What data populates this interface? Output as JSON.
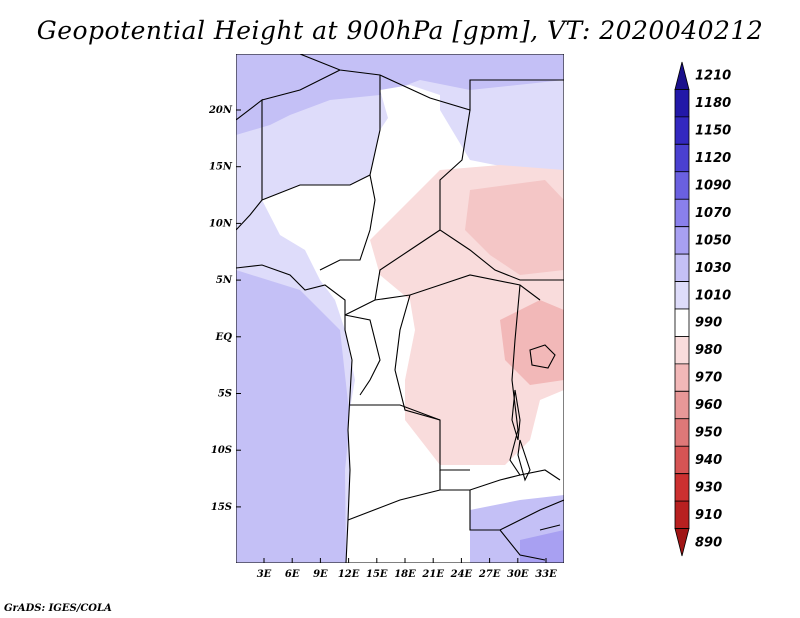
{
  "title": "Geopotential Height at 900hPa [gpm], VT: 2020040212",
  "credit": "GrADS: IGES/COLA",
  "map": {
    "lat_labels": [
      "20N",
      "15N",
      "10N",
      "5N",
      "EQ",
      "5S",
      "10S",
      "15S"
    ],
    "lon_labels": [
      "3E",
      "6E",
      "9E",
      "12E",
      "15E",
      "18E",
      "21E",
      "24E",
      "27E",
      "30E",
      "33E"
    ],
    "region": "Central Africa (approx. 0E–35E, 20S–24N)"
  },
  "colorbar": {
    "units": "gpm",
    "levels": [
      1210,
      1180,
      1150,
      1120,
      1090,
      1070,
      1050,
      1030,
      1010,
      990,
      980,
      970,
      960,
      950,
      940,
      930,
      910,
      890
    ],
    "colors": [
      "#1a108c",
      "#2218a8",
      "#3328c0",
      "#4a40d0",
      "#6a60e0",
      "#8a80ec",
      "#a8a0f2",
      "#c4c0f6",
      "#dedcfa",
      "#ffffff",
      "#f9dcdc",
      "#f2b8b8",
      "#e89898",
      "#de7878",
      "#d65454",
      "#cc3030",
      "#b82020",
      "#a01515"
    ]
  }
}
